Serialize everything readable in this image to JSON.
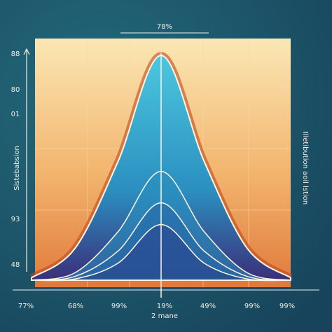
{
  "chart_data": {
    "type": "area",
    "title": "78%",
    "x_label": "2 mane",
    "y_label": "Sistebabsion",
    "y2_label": "Illetibution aoil lstion",
    "y_axis_labels": [
      "88",
      "80",
      "01",
      "93",
      "48"
    ],
    "categories": [
      "77%",
      "68%",
      "99%",
      "19%",
      "49%",
      "99%",
      "99%"
    ],
    "ylim": [
      0,
      100
    ],
    "series": [
      {
        "color": "#2aa7c9",
        "values": [
          1,
          13,
          49,
          93,
          49,
          13,
          1
        ]
      },
      {
        "color": "#2a8fc0",
        "values": [
          0,
          3,
          20,
          45,
          20,
          3,
          0
        ]
      },
      {
        "color": "#2467a8",
        "values": [
          0,
          1.5,
          12,
          32,
          12,
          1.5,
          0
        ]
      },
      {
        "color": "#2a3f8a",
        "values": [
          0,
          0.5,
          7,
          23,
          7,
          0.5,
          0
        ]
      }
    ]
  }
}
